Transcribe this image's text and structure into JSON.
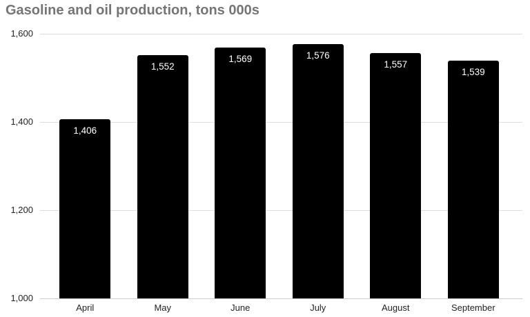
{
  "chart_data": {
    "type": "bar",
    "title": "Gasoline and oil production, tons 000s",
    "categories": [
      "April",
      "May",
      "June",
      "July",
      "August",
      "September"
    ],
    "values": [
      1406,
      1552,
      1569,
      1576,
      1557,
      1539
    ],
    "value_labels": [
      "1,406",
      "1,552",
      "1,569",
      "1,576",
      "1,557",
      "1,539"
    ],
    "xlabel": "",
    "ylabel": "",
    "ylim": [
      1000,
      1600
    ],
    "yticks": [
      {
        "value": 1000,
        "label": "1,000"
      },
      {
        "value": 1200,
        "label": "1,200"
      },
      {
        "value": 1400,
        "label": "1,400"
      },
      {
        "value": 1600,
        "label": "1,600"
      }
    ],
    "grid": true,
    "legend": "none",
    "value_labels_position": "inside-top",
    "colors": {
      "bar": "#000000",
      "bar_label": "#ffffff",
      "title": "#757575",
      "axis_label": "#222222",
      "gridline": "#dddddd",
      "baseline": "#cccccc",
      "background": "#ffffff"
    }
  }
}
